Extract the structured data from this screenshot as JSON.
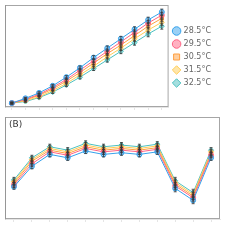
{
  "chart_data": [
    {
      "type": "line",
      "x": [
        1,
        2,
        3,
        4,
        5,
        6,
        7,
        8,
        9,
        10,
        11,
        12
      ],
      "xlim": [
        0.5,
        12.5
      ],
      "xticks": [
        1,
        2,
        3,
        4,
        5,
        6,
        7,
        8,
        9,
        10,
        11,
        12
      ],
      "ylim": [
        5,
        135
      ],
      "yticks": [],
      "grid": false,
      "tick_labels": false,
      "legend": "right",
      "series": [
        {
          "name": "28.5°C",
          "marker": "circle",
          "values": [
            10,
            16,
            23,
            32,
            43,
            55,
            68,
            80,
            92,
            104,
            116,
            126
          ],
          "errors": [
            1.0,
            1.2,
            1.5,
            1.8,
            2.0,
            2.2,
            2.5,
            2.8,
            3.0,
            3.2,
            3.5,
            3.8
          ]
        },
        {
          "name": "29.5°C",
          "marker": "circle",
          "values": [
            10,
            15,
            21,
            30,
            40,
            52,
            64,
            76,
            88,
            100,
            112,
            122
          ],
          "errors": [
            1.0,
            1.2,
            1.5,
            1.8,
            2.0,
            2.2,
            2.5,
            2.8,
            3.0,
            3.2,
            3.5,
            3.8
          ]
        },
        {
          "name": "30.5°C",
          "marker": "square",
          "values": [
            10,
            14,
            20,
            28,
            38,
            49,
            61,
            73,
            84,
            96,
            108,
            118
          ],
          "errors": [
            1.0,
            1.2,
            1.5,
            1.8,
            2.0,
            2.2,
            2.5,
            2.8,
            3.0,
            3.2,
            3.5,
            3.8
          ]
        },
        {
          "name": "31.5°C",
          "marker": "diamond",
          "values": [
            10,
            13,
            18,
            26,
            35,
            46,
            57,
            69,
            80,
            92,
            103,
            113
          ],
          "errors": [
            1.0,
            1.2,
            1.5,
            1.8,
            2.0,
            2.2,
            2.5,
            2.8,
            3.0,
            3.2,
            3.5,
            3.8
          ]
        },
        {
          "name": "32.5°C",
          "marker": "diamond",
          "values": [
            10,
            12,
            17,
            24,
            33,
            43,
            54,
            65,
            76,
            87,
            98,
            108
          ],
          "errors": [
            1.0,
            1.2,
            1.5,
            1.8,
            2.0,
            2.2,
            2.5,
            2.8,
            3.0,
            3.2,
            3.5,
            3.8
          ]
        }
      ]
    },
    {
      "type": "line",
      "annotation": "(B)",
      "x": [
        1,
        2,
        3,
        4,
        5,
        6,
        7,
        8,
        9,
        10,
        11,
        12
      ],
      "xlim": [
        0.5,
        12.5
      ],
      "xticks": [
        1,
        2,
        3,
        4,
        5,
        6,
        7,
        8,
        9,
        10,
        11,
        12
      ],
      "ylim": [
        1,
        13
      ],
      "yticks": [],
      "grid": false,
      "tick_labels": false,
      "series": [
        {
          "marker": "circle",
          "values": [
            4.8,
            7.2,
            8.6,
            8.2,
            9.0,
            8.6,
            8.8,
            8.6,
            8.9,
            4.6,
            3.2,
            8.2
          ],
          "errors": [
            0.3,
            0.3,
            0.3,
            0.3,
            0.3,
            0.3,
            0.3,
            0.3,
            0.3,
            0.4,
            0.4,
            0.3
          ]
        },
        {
          "marker": "circle",
          "values": [
            5.0,
            7.5,
            8.9,
            8.5,
            9.3,
            8.9,
            9.1,
            8.9,
            9.2,
            4.9,
            3.5,
            8.5
          ],
          "errors": [
            0.3,
            0.3,
            0.3,
            0.3,
            0.3,
            0.3,
            0.3,
            0.3,
            0.3,
            0.4,
            0.4,
            0.3
          ]
        },
        {
          "marker": "square",
          "values": [
            5.2,
            7.8,
            9.1,
            8.7,
            9.5,
            9.1,
            9.3,
            9.1,
            9.4,
            5.1,
            3.7,
            8.7
          ],
          "errors": [
            0.3,
            0.3,
            0.3,
            0.3,
            0.3,
            0.3,
            0.3,
            0.3,
            0.3,
            0.4,
            0.4,
            0.3
          ]
        },
        {
          "marker": "diamond",
          "values": [
            5.4,
            8.0,
            9.3,
            8.9,
            9.7,
            9.3,
            9.5,
            9.3,
            9.6,
            5.3,
            3.9,
            8.9
          ],
          "errors": [
            0.3,
            0.3,
            0.3,
            0.3,
            0.3,
            0.3,
            0.3,
            0.3,
            0.3,
            0.4,
            0.4,
            0.3
          ]
        },
        {
          "marker": "diamond",
          "values": [
            5.6,
            8.2,
            9.5,
            9.1,
            9.9,
            9.5,
            9.7,
            9.5,
            9.8,
            5.5,
            4.1,
            9.1
          ],
          "errors": [
            0.3,
            0.3,
            0.3,
            0.3,
            0.3,
            0.3,
            0.3,
            0.3,
            0.3,
            0.4,
            0.4,
            0.3
          ]
        }
      ]
    }
  ]
}
